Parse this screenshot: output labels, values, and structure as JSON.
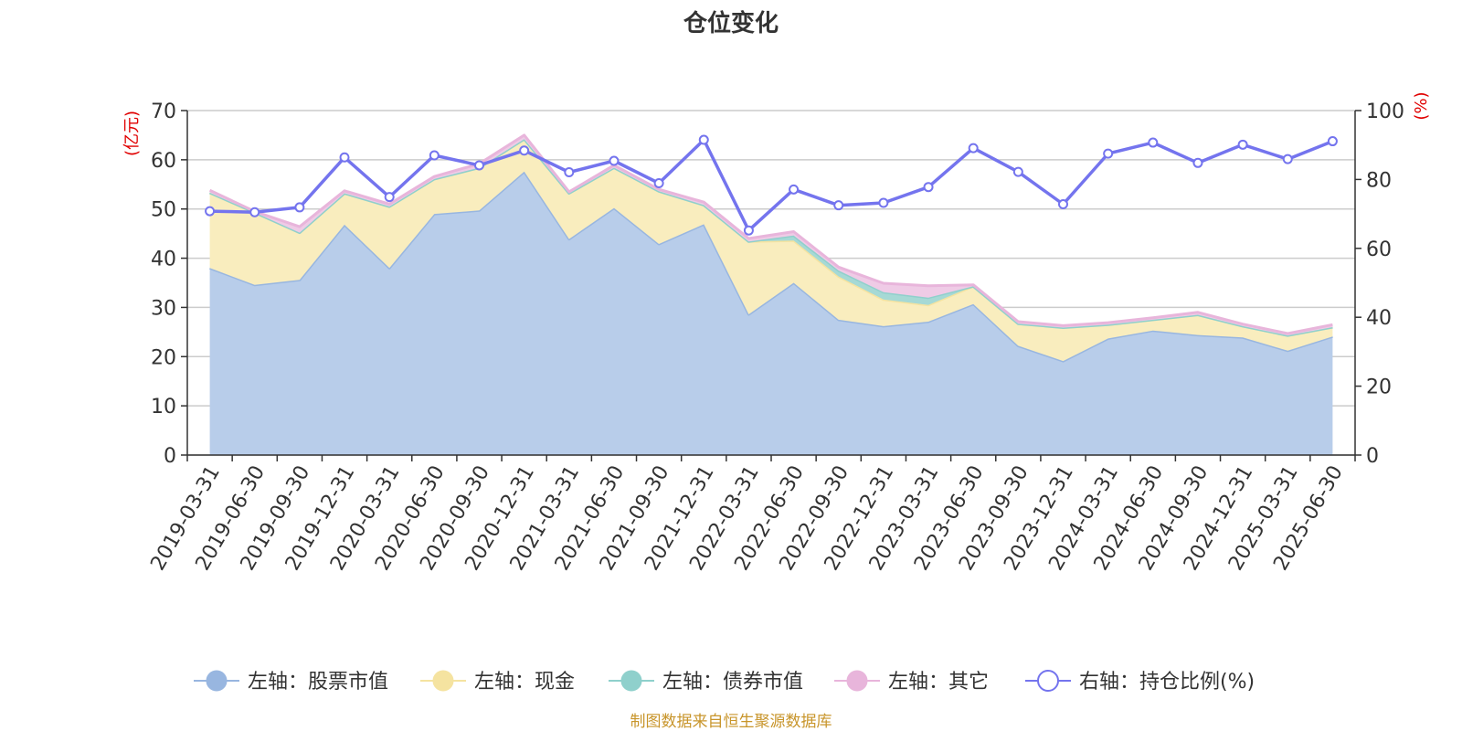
{
  "chart_data": {
    "type": "area",
    "title": "仓位变化",
    "left_axis_unit": "(亿元)",
    "right_axis_unit": "(%)",
    "left_ylim": [
      0,
      70
    ],
    "left_yticks": [
      "0",
      "10",
      "20",
      "30",
      "40",
      "50",
      "60",
      "70"
    ],
    "right_ylim": [
      0,
      100
    ],
    "right_yticks": [
      "0",
      "20",
      "40",
      "60",
      "80",
      "100"
    ],
    "grid": true,
    "stacked": true,
    "legend_position": "bottom",
    "categories": [
      "2019-03-31",
      "2019-06-30",
      "2019-09-30",
      "2019-12-31",
      "2020-03-31",
      "2020-06-30",
      "2020-09-30",
      "2020-12-31",
      "2021-03-31",
      "2021-06-30",
      "2021-09-30",
      "2021-12-31",
      "2022-03-31",
      "2022-06-30",
      "2022-09-30",
      "2022-12-31",
      "2023-03-31",
      "2023-06-30",
      "2023-09-30",
      "2023-12-31",
      "2024-03-31",
      "2024-06-30",
      "2024-09-30",
      "2024-12-31",
      "2025-03-31",
      "2025-06-30"
    ],
    "series": [
      {
        "name": "左轴：股票市值",
        "axis": "left",
        "kind": "area",
        "color": "#98b6e0",
        "fill": "#b8cdea",
        "values": [
          38.0,
          34.6,
          35.6,
          46.8,
          38.0,
          49.0,
          49.7,
          57.6,
          43.9,
          50.2,
          42.9,
          46.9,
          28.6,
          35.0,
          27.5,
          26.2,
          27.1,
          30.7,
          22.2,
          19.1,
          23.7,
          25.3,
          24.4,
          23.9,
          21.2,
          24.1
        ]
      },
      {
        "name": "左轴：现金",
        "axis": "left",
        "kind": "area",
        "color": "#f5e3a0",
        "fill": "#f9edbe",
        "values": [
          15.3,
          14.7,
          9.6,
          6.4,
          12.5,
          7.1,
          8.7,
          6.6,
          9.3,
          8.2,
          10.7,
          3.9,
          14.8,
          8.6,
          8.8,
          5.4,
          3.4,
          3.6,
          4.5,
          6.8,
          2.8,
          2.2,
          4.1,
          2.3,
          3.1,
          1.9
        ]
      },
      {
        "name": "左轴：债券市值",
        "axis": "left",
        "kind": "area",
        "color": "#8fd0cc",
        "fill": "#a6d9d5",
        "values": [
          0.0,
          0.0,
          0.0,
          0.0,
          0.0,
          0.0,
          0.0,
          0.0,
          0.0,
          0.0,
          0.0,
          0.0,
          0.0,
          1.0,
          1.2,
          1.5,
          1.5,
          0.0,
          0.0,
          0.0,
          0.0,
          0.0,
          0.0,
          0.0,
          0.0,
          0.0
        ]
      },
      {
        "name": "左轴：其它",
        "axis": "left",
        "kind": "area",
        "color": "#e8b5db",
        "fill": "#efcbe6",
        "values": [
          0.5,
          0.2,
          1.2,
          0.5,
          0.5,
          0.5,
          0.8,
          0.8,
          0.3,
          0.5,
          0.4,
          0.6,
          0.6,
          0.8,
          0.7,
          1.8,
          2.4,
          0.3,
          0.4,
          0.4,
          0.4,
          0.4,
          0.5,
          0.4,
          0.4,
          0.5
        ]
      },
      {
        "name": "右轴：持仓比例(%)",
        "axis": "right",
        "kind": "line",
        "color": "#7474ee",
        "values": [
          70.8,
          70.5,
          71.9,
          86.4,
          74.9,
          87.0,
          84.1,
          88.4,
          82.1,
          85.4,
          78.9,
          91.5,
          65.2,
          77.1,
          72.5,
          73.2,
          77.8,
          89.1,
          82.2,
          72.8,
          87.5,
          90.7,
          84.8,
          90.1,
          85.9,
          91.1
        ]
      }
    ],
    "source_note": "制图数据来自恒生聚源数据库"
  }
}
